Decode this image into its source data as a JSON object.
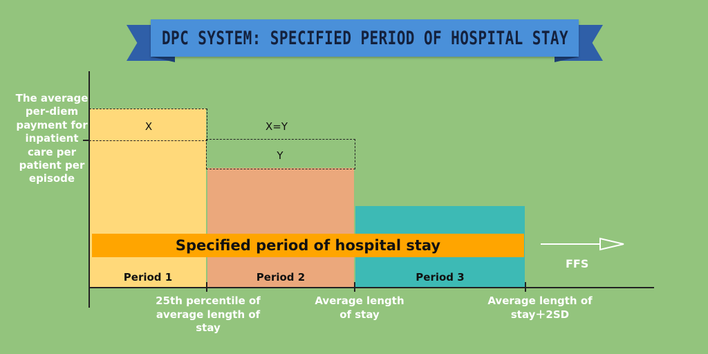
{
  "title": "DPC SYSTEM: SPECIFIED PERIOD OF HOSPITAL STAY",
  "y_axis_label": "The average per-diem payment for inpatient care per patient per episode",
  "band_label": "Specified period of hospital stay",
  "periods": [
    "Period 1",
    "Period 2",
    "Period 3"
  ],
  "boxes": {
    "x": "X",
    "x_eq_y": "X=Y",
    "y": "Y"
  },
  "x_ticks": [
    "25th percentile of average length of stay",
    "Average length of stay",
    "Average length of stay＋2SD"
  ],
  "ffs_label": "FFS",
  "colors": {
    "background": "#93c47d",
    "banner": "#4a90d9",
    "period1": "#ffd97a",
    "period2": "#eba87c",
    "period3": "#3dbab5",
    "band": "#ffa500"
  }
}
